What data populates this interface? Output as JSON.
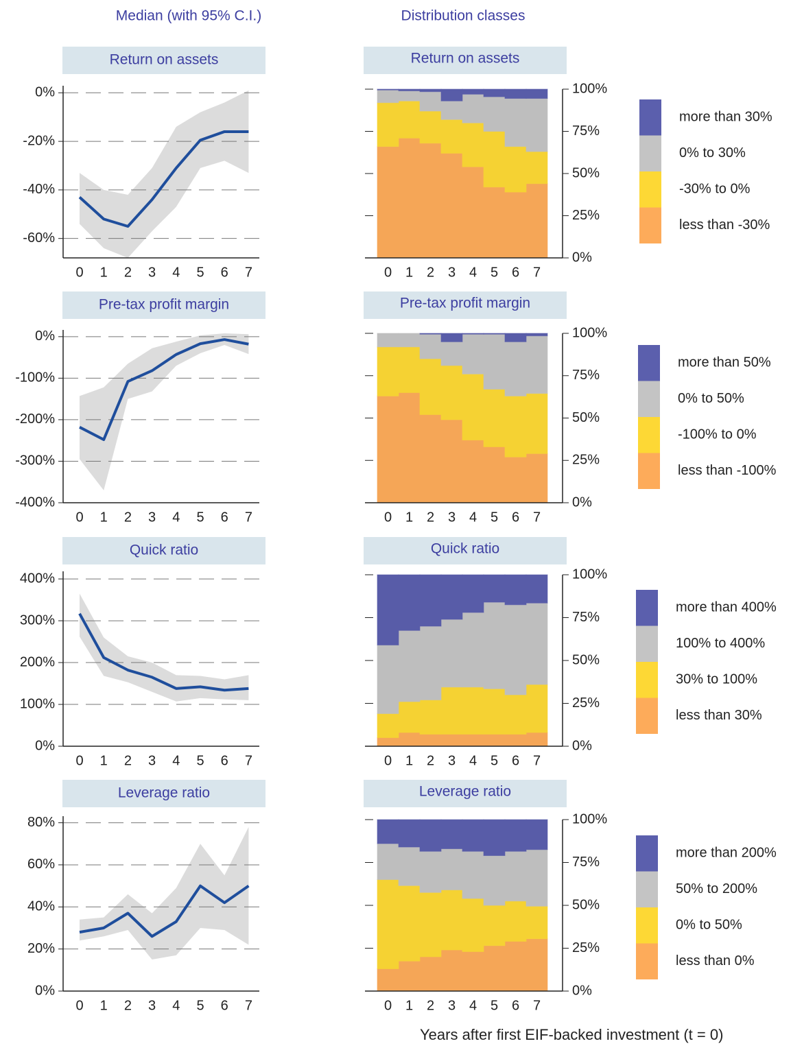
{
  "column_titles": [
    "Median (with 95% C.I.)",
    "Distribution classes"
  ],
  "x_label": "Years after first EIF-backed investment (t = 0)",
  "chart_data": [
    {
      "type": "line",
      "title": "Return on assets",
      "categories": [
        "0",
        "1",
        "2",
        "3",
        "4",
        "5",
        "6",
        "7"
      ],
      "values": [
        -43,
        -52,
        -55,
        -44,
        -31,
        -19.5,
        -16,
        -16
      ],
      "upper": [
        -33,
        -40,
        -42,
        -31,
        -14,
        -8,
        -4,
        1
      ],
      "lower": [
        -54,
        -64,
        -68,
        -57,
        -47,
        -31,
        -28,
        -33
      ],
      "color": "#1f4e9c",
      "band_color": "#dcdcdc",
      "ylim": [
        -68,
        1.5
      ],
      "yticks": [
        {
          "value": 0,
          "label": "0%"
        },
        {
          "value": -20,
          "label": "-20%"
        },
        {
          "value": -40,
          "label": "-40%"
        },
        {
          "value": -60,
          "label": "-60%"
        }
      ],
      "grid": true
    },
    {
      "type": "bar",
      "stacked": true,
      "title": "Return on assets",
      "categories": [
        "0",
        "1",
        "2",
        "3",
        "4",
        "5",
        "6",
        "7"
      ],
      "series": [
        {
          "name": "less than -30%",
          "color": "#fdab5a",
          "values": [
            66,
            71,
            68,
            62,
            54,
            42,
            39,
            44
          ]
        },
        {
          "name": "-30% to 0%",
          "color": "#fdd835",
          "values": [
            26,
            22,
            19,
            20,
            26,
            33,
            27,
            19
          ]
        },
        {
          "name": "0% to 30%",
          "color": "#c4c4c4",
          "values": [
            7.5,
            6,
            11.5,
            11,
            17,
            20.5,
            28.5,
            31.5
          ]
        },
        {
          "name": "more than 30%",
          "color": "#5b5fad",
          "values": [
            0.5,
            1,
            1.5,
            7,
            3,
            4.5,
            5.5,
            5.5
          ]
        }
      ],
      "ylim": [
        0,
        100
      ],
      "yticks": [
        {
          "value": 0,
          "label": "0%"
        },
        {
          "value": 25,
          "label": "25%"
        },
        {
          "value": 50,
          "label": "50%"
        },
        {
          "value": 75,
          "label": "75%"
        },
        {
          "value": 100,
          "label": "100%"
        }
      ]
    },
    {
      "type": "line",
      "title": "Pre-tax profit margin",
      "categories": [
        "0",
        "1",
        "2",
        "3",
        "4",
        "5",
        "6",
        "7"
      ],
      "values": [
        -218,
        -248,
        -108,
        -82,
        -43,
        -17,
        -7,
        -18
      ],
      "upper": [
        -143,
        -122,
        -65,
        -28,
        -12,
        3,
        8,
        6
      ],
      "lower": [
        -295,
        -370,
        -150,
        -132,
        -70,
        -40,
        -20,
        -42
      ],
      "color": "#1f4e9c",
      "band_color": "#dcdcdc",
      "ylim": [
        -400,
        8
      ],
      "yticks": [
        {
          "value": 0,
          "label": "0%"
        },
        {
          "value": -100,
          "label": "-100%"
        },
        {
          "value": -200,
          "label": "-200%"
        },
        {
          "value": -300,
          "label": "-300%"
        },
        {
          "value": -400,
          "label": "-400%"
        }
      ],
      "grid": true
    },
    {
      "type": "bar",
      "stacked": true,
      "title": "Pre-tax profit margin",
      "categories": [
        "0",
        "1",
        "2",
        "3",
        "4",
        "5",
        "6",
        "7"
      ],
      "series": [
        {
          "name": "less than -100%",
          "color": "#fdab5a",
          "values": [
            63,
            65,
            52,
            49,
            37,
            33,
            27,
            29
          ]
        },
        {
          "name": "-100% to 0%",
          "color": "#fdd835",
          "values": [
            29,
            27,
            33,
            32,
            39,
            34,
            36,
            35.5
          ]
        },
        {
          "name": "0% to 50%",
          "color": "#c4c4c4",
          "values": [
            8,
            8,
            14.5,
            14,
            23.5,
            32.5,
            32,
            34
          ]
        },
        {
          "name": "more than 50%",
          "color": "#5b5fad",
          "values": [
            0,
            0,
            0.5,
            5,
            0.5,
            0.5,
            5,
            1.5
          ]
        }
      ],
      "ylim": [
        0,
        100
      ],
      "yticks": [
        {
          "value": 0,
          "label": "0%"
        },
        {
          "value": 25,
          "label": "25%"
        },
        {
          "value": 50,
          "label": "50%"
        },
        {
          "value": 75,
          "label": "75%"
        },
        {
          "value": 100,
          "label": "100%"
        }
      ]
    },
    {
      "type": "line",
      "title": "Quick ratio",
      "categories": [
        "0",
        "1",
        "2",
        "3",
        "4",
        "5",
        "6",
        "7"
      ],
      "values": [
        317,
        212,
        182,
        165,
        138,
        142,
        134,
        138
      ],
      "upper": [
        365,
        260,
        215,
        200,
        170,
        168,
        160,
        170
      ],
      "lower": [
        262,
        168,
        153,
        130,
        107,
        115,
        112,
        110
      ],
      "color": "#1f4e9c",
      "band_color": "#dcdcdc",
      "ylim": [
        0,
        410
      ],
      "yticks": [
        {
          "value": 0,
          "label": "0%"
        },
        {
          "value": 100,
          "label": "100%"
        },
        {
          "value": 200,
          "label": "200%"
        },
        {
          "value": 300,
          "label": "300%"
        },
        {
          "value": 400,
          "label": "400%"
        }
      ],
      "grid": true
    },
    {
      "type": "bar",
      "stacked": true,
      "title": "Quick ratio",
      "categories": [
        "0",
        "1",
        "2",
        "3",
        "4",
        "5",
        "6",
        "7"
      ],
      "series": [
        {
          "name": "less than 30%",
          "color": "#fdab5a",
          "values": [
            5,
            8,
            7,
            7,
            7,
            7,
            7,
            8
          ]
        },
        {
          "name": "30% to 100%",
          "color": "#fdd835",
          "values": [
            14,
            18,
            20,
            27.5,
            27.5,
            26.5,
            23,
            28
          ]
        },
        {
          "name": "100% to 400%",
          "color": "#c4c4c4",
          "values": [
            40,
            41.5,
            43,
            39.5,
            43.5,
            50.5,
            52.5,
            47.5
          ]
        },
        {
          "name": "more than 400%",
          "color": "#5b5fad",
          "values": [
            41,
            32.5,
            30,
            26,
            22,
            16,
            17.5,
            16.5
          ]
        }
      ],
      "ylim": [
        0,
        100
      ],
      "yticks": [
        {
          "value": 0,
          "label": "0%"
        },
        {
          "value": 25,
          "label": "25%"
        },
        {
          "value": 50,
          "label": "50%"
        },
        {
          "value": 75,
          "label": "75%"
        },
        {
          "value": 100,
          "label": "100%"
        }
      ]
    },
    {
      "type": "line",
      "title": "Leverage ratio",
      "categories": [
        "0",
        "1",
        "2",
        "3",
        "4",
        "5",
        "6",
        "7"
      ],
      "values": [
        28,
        30,
        37,
        26,
        33,
        50,
        42,
        50
      ],
      "upper": [
        34,
        35,
        46,
        37,
        49,
        70,
        55,
        78
      ],
      "lower": [
        24,
        26,
        29,
        15,
        17,
        30,
        29,
        22
      ],
      "color": "#1f4e9c",
      "band_color": "#dcdcdc",
      "ylim": [
        0,
        81.5
      ],
      "yticks": [
        {
          "value": 0,
          "label": "0%"
        },
        {
          "value": 20,
          "label": "20%"
        },
        {
          "value": 40,
          "label": "40%"
        },
        {
          "value": 60,
          "label": "60%"
        },
        {
          "value": 80,
          "label": "80%"
        }
      ],
      "grid": true
    },
    {
      "type": "bar",
      "stacked": true,
      "title": "Leverage ratio",
      "categories": [
        "0",
        "1",
        "2",
        "3",
        "4",
        "5",
        "6",
        "7"
      ],
      "series": [
        {
          "name": "less than 0%",
          "color": "#fdab5a",
          "values": [
            13,
            17.5,
            20,
            24,
            23,
            26.5,
            29,
            30.5
          ]
        },
        {
          "name": "0% to 50%",
          "color": "#fdd835",
          "values": [
            52,
            44,
            37.5,
            35,
            31,
            23.5,
            23.5,
            19
          ]
        },
        {
          "name": "50% to 200%",
          "color": "#c4c4c4",
          "values": [
            21,
            22.5,
            24,
            24,
            27.5,
            29,
            29,
            33
          ]
        },
        {
          "name": "more than 200%",
          "color": "#5b5fad",
          "values": [
            14,
            16,
            18.5,
            17,
            18.5,
            21,
            18.5,
            17.5
          ]
        }
      ],
      "ylim": [
        0,
        100
      ],
      "yticks": [
        {
          "value": 0,
          "label": "0%"
        },
        {
          "value": 25,
          "label": "25%"
        },
        {
          "value": 50,
          "label": "50%"
        },
        {
          "value": 75,
          "label": "75%"
        },
        {
          "value": 100,
          "label": "100%"
        }
      ]
    }
  ]
}
